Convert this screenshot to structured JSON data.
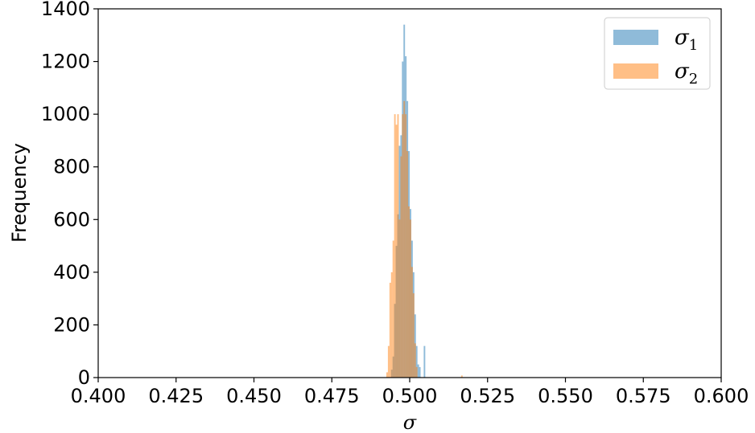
{
  "chart_data": {
    "type": "histogram",
    "xlabel": "σ",
    "ylabel": "Frequency",
    "xlim": [
      0.4,
      0.6
    ],
    "ylim": [
      0,
      1400
    ],
    "xticks": [
      "0.400",
      "0.425",
      "0.450",
      "0.475",
      "0.500",
      "0.525",
      "0.550",
      "0.575",
      "0.600"
    ],
    "xtick_values": [
      0.4,
      0.425,
      0.45,
      0.475,
      0.5,
      0.525,
      0.55,
      0.575,
      0.6
    ],
    "yticks": [
      "0",
      "200",
      "400",
      "600",
      "800",
      "1000",
      "1200",
      "1400"
    ],
    "ytick_values": [
      0,
      200,
      400,
      600,
      800,
      1000,
      1200,
      1400
    ],
    "grid": false,
    "legend_position": "top-right",
    "series": [
      {
        "name": "σ",
        "subscript": "1",
        "color": "#1f77b4",
        "opacity": 0.5,
        "bins": [
          {
            "x0": 0.494,
            "x1": 0.4945,
            "y": 30
          },
          {
            "x0": 0.4945,
            "x1": 0.495,
            "y": 80
          },
          {
            "x0": 0.495,
            "x1": 0.4955,
            "y": 280
          },
          {
            "x0": 0.4955,
            "x1": 0.496,
            "y": 500
          },
          {
            "x0": 0.496,
            "x1": 0.4965,
            "y": 620
          },
          {
            "x0": 0.4965,
            "x1": 0.497,
            "y": 880
          },
          {
            "x0": 0.497,
            "x1": 0.4975,
            "y": 920
          },
          {
            "x0": 0.4975,
            "x1": 0.498,
            "y": 1200
          },
          {
            "x0": 0.498,
            "x1": 0.4985,
            "y": 1340
          },
          {
            "x0": 0.4985,
            "x1": 0.499,
            "y": 1220
          },
          {
            "x0": 0.499,
            "x1": 0.4995,
            "y": 1050
          },
          {
            "x0": 0.4995,
            "x1": 0.5,
            "y": 860
          },
          {
            "x0": 0.5,
            "x1": 0.5005,
            "y": 640
          },
          {
            "x0": 0.5005,
            "x1": 0.501,
            "y": 520
          },
          {
            "x0": 0.501,
            "x1": 0.5015,
            "y": 400
          },
          {
            "x0": 0.5015,
            "x1": 0.502,
            "y": 240
          },
          {
            "x0": 0.502,
            "x1": 0.5025,
            "y": 120
          },
          {
            "x0": 0.5025,
            "x1": 0.503,
            "y": 50
          },
          {
            "x0": 0.503,
            "x1": 0.5035,
            "y": 40
          },
          {
            "x0": 0.5045,
            "x1": 0.505,
            "y": 120
          }
        ]
      },
      {
        "name": "σ",
        "subscript": "2",
        "color": "#ff7f0e",
        "opacity": 0.5,
        "bins": [
          {
            "x0": 0.4925,
            "x1": 0.493,
            "y": 20
          },
          {
            "x0": 0.493,
            "x1": 0.4935,
            "y": 120
          },
          {
            "x0": 0.4935,
            "x1": 0.494,
            "y": 360
          },
          {
            "x0": 0.494,
            "x1": 0.4945,
            "y": 400
          },
          {
            "x0": 0.4945,
            "x1": 0.495,
            "y": 520
          },
          {
            "x0": 0.495,
            "x1": 0.4955,
            "y": 1000
          },
          {
            "x0": 0.4955,
            "x1": 0.496,
            "y": 960
          },
          {
            "x0": 0.496,
            "x1": 0.4965,
            "y": 1000
          },
          {
            "x0": 0.4965,
            "x1": 0.497,
            "y": 600
          },
          {
            "x0": 0.497,
            "x1": 0.4975,
            "y": 840
          },
          {
            "x0": 0.4975,
            "x1": 0.498,
            "y": 1000
          },
          {
            "x0": 0.498,
            "x1": 0.4985,
            "y": 1050
          },
          {
            "x0": 0.4985,
            "x1": 0.499,
            "y": 1000
          },
          {
            "x0": 0.499,
            "x1": 0.4995,
            "y": 860
          },
          {
            "x0": 0.4995,
            "x1": 0.5,
            "y": 650
          },
          {
            "x0": 0.5,
            "x1": 0.5005,
            "y": 600
          },
          {
            "x0": 0.5005,
            "x1": 0.501,
            "y": 420
          },
          {
            "x0": 0.501,
            "x1": 0.5015,
            "y": 320
          },
          {
            "x0": 0.5015,
            "x1": 0.502,
            "y": 130
          },
          {
            "x0": 0.502,
            "x1": 0.5025,
            "y": 40
          },
          {
            "x0": 0.5165,
            "x1": 0.517,
            "y": 8
          }
        ]
      }
    ]
  }
}
